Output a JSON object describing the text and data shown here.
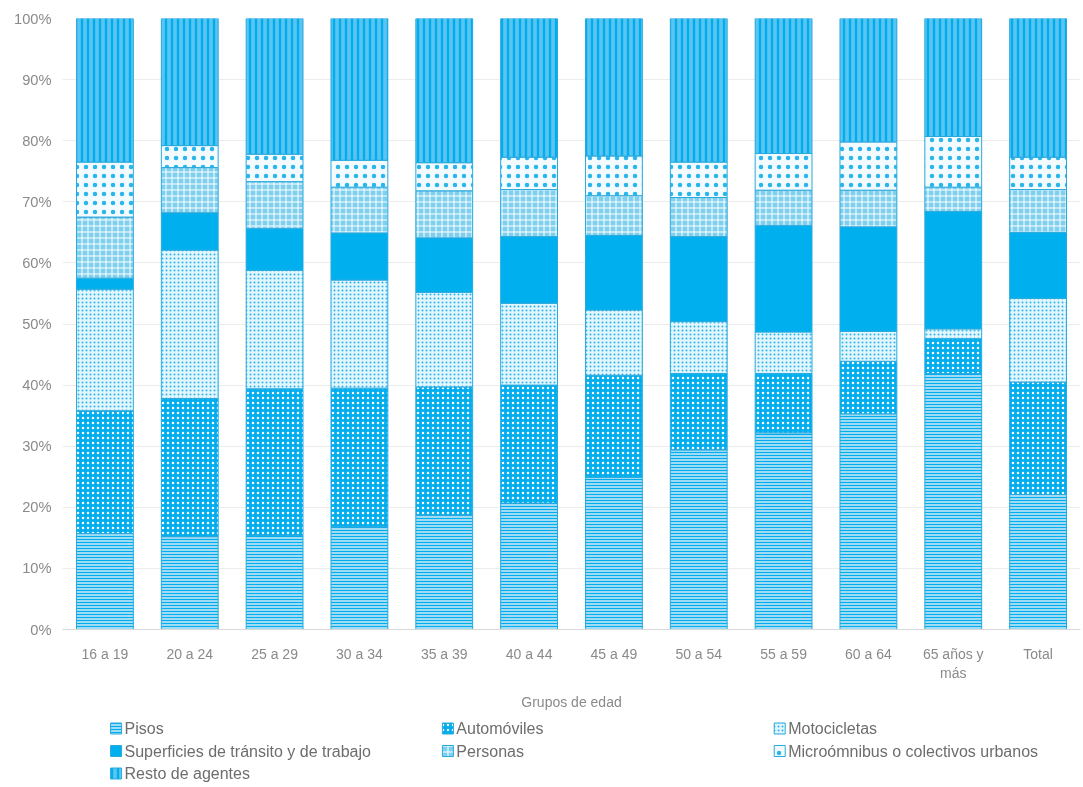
{
  "chart_data": {
    "type": "bar",
    "stacked": true,
    "xlabel": "Grupos de edad",
    "categories": [
      "16 a 19",
      "20 a 24",
      "25 a 29",
      "30 a 34",
      "35 a 39",
      "40 a 44",
      "45 a 49",
      "50 a 54",
      "55 a 59",
      "60 a 64",
      "65 años y más",
      "Total"
    ],
    "series": [
      {
        "name": "Pisos",
        "color": "#9fdcf4",
        "values": [
          15.7,
          15.2,
          15.4,
          16.8,
          18.7,
          20.7,
          24.9,
          29.4,
          32.2,
          35.3,
          41.9,
          22.1
        ]
      },
      {
        "name": "Automóviles",
        "color": "#00aeef",
        "values": [
          20.1,
          22.6,
          24.0,
          22.7,
          21.0,
          19.3,
          16.7,
          12.5,
          9.7,
          8.6,
          5.7,
          18.4
        ]
      },
      {
        "name": "Motocicletas",
        "color": "#e3f5fd",
        "values": [
          19.9,
          24.3,
          19.4,
          17.7,
          15.5,
          13.4,
          10.7,
          8.5,
          6.8,
          4.9,
          1.6,
          13.7
        ]
      },
      {
        "name": "Superficies de tránsito y de trabajo",
        "color": "#00b0ee",
        "values": [
          1.8,
          6.1,
          6.8,
          7.7,
          8.9,
          10.9,
          12.2,
          13.9,
          17.4,
          17.1,
          19.2,
          10.8
        ]
      },
      {
        "name": "Personas",
        "color": "#7fcfee",
        "values": [
          10.0,
          7.4,
          7.7,
          7.5,
          7.7,
          7.7,
          6.5,
          6.4,
          5.8,
          6.0,
          4.0,
          7.0
        ]
      },
      {
        "name": "Microómnibus o colectivos urbanos",
        "color": "#f4fbfe",
        "values": [
          9.0,
          3.6,
          4.5,
          4.4,
          4.6,
          5.3,
          6.5,
          5.8,
          6.0,
          7.9,
          8.3,
          5.3
        ]
      },
      {
        "name": "Resto de agentes",
        "color": "#5cc4f0",
        "values": [
          23.5,
          20.8,
          22.2,
          23.2,
          23.6,
          22.7,
          22.5,
          23.5,
          22.1,
          20.2,
          19.3,
          22.7
        ]
      }
    ],
    "ylim": [
      0,
      100
    ],
    "yticks": [
      {
        "value": 0,
        "label": "0%"
      },
      {
        "value": 10,
        "label": "10%"
      },
      {
        "value": 20,
        "label": "20%"
      },
      {
        "value": 30,
        "label": "30%"
      },
      {
        "value": 40,
        "label": "40%"
      },
      {
        "value": 50,
        "label": "50%"
      },
      {
        "value": 60,
        "label": "60%"
      },
      {
        "value": 70,
        "label": "70%"
      },
      {
        "value": 80,
        "label": "80%"
      },
      {
        "value": 90,
        "label": "90%"
      },
      {
        "value": 100,
        "label": "100%"
      }
    ],
    "grid": "y",
    "legend": "bottom"
  }
}
